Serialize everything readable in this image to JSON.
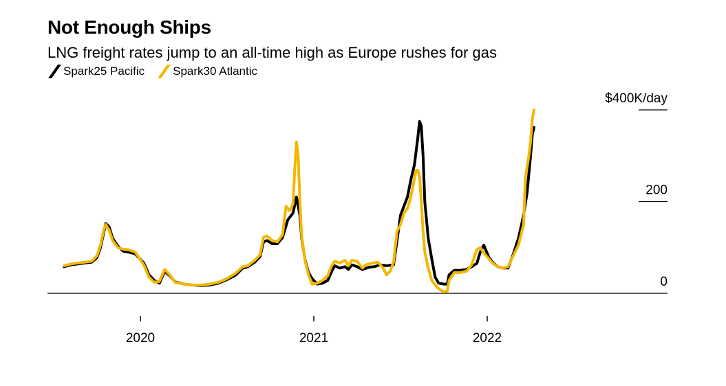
{
  "header": {
    "title": "Not Enough Ships",
    "subtitle": "LNG freight rates jump to an all-time high as Europe rushes for gas"
  },
  "chart_data": {
    "type": "line",
    "title": "Not Enough Ships",
    "subtitle": "LNG freight rates jump to an all-time high as Europe rushes for gas",
    "xlabel": "",
    "ylabel": "",
    "y_unit_label": "$400K/day",
    "ylim": [
      0,
      400
    ],
    "y_ticks": [
      0,
      200,
      400
    ],
    "y_tick_labels": [
      "0",
      "200",
      "$400K/day"
    ],
    "xlim": [
      2019.55,
      2022.85
    ],
    "x_ticks": [
      2020,
      2021,
      2022
    ],
    "x_tick_labels": [
      "2020",
      "2021",
      "2022"
    ],
    "grid": false,
    "legend_position": "top-left",
    "series": [
      {
        "name": "Spark25 Pacific",
        "color": "#000000",
        "points": [
          [
            2019.56,
            58
          ],
          [
            2019.6,
            62
          ],
          [
            2019.64,
            64
          ],
          [
            2019.68,
            66
          ],
          [
            2019.72,
            68
          ],
          [
            2019.75,
            78
          ],
          [
            2019.77,
            100
          ],
          [
            2019.79,
            135
          ],
          [
            2019.8,
            152
          ],
          [
            2019.82,
            145
          ],
          [
            2019.84,
            120
          ],
          [
            2019.87,
            103
          ],
          [
            2019.9,
            92
          ],
          [
            2019.93,
            90
          ],
          [
            2019.97,
            86
          ],
          [
            2020.02,
            66
          ],
          [
            2020.05,
            40
          ],
          [
            2020.08,
            28
          ],
          [
            2020.11,
            22
          ],
          [
            2020.14,
            48
          ],
          [
            2020.17,
            38
          ],
          [
            2020.2,
            25
          ],
          [
            2020.25,
            20
          ],
          [
            2020.3,
            18
          ],
          [
            2020.35,
            17
          ],
          [
            2020.4,
            18
          ],
          [
            2020.45,
            22
          ],
          [
            2020.5,
            30
          ],
          [
            2020.55,
            40
          ],
          [
            2020.59,
            55
          ],
          [
            2020.62,
            58
          ],
          [
            2020.66,
            68
          ],
          [
            2020.69,
            80
          ],
          [
            2020.71,
            112
          ],
          [
            2020.73,
            115
          ],
          [
            2020.76,
            108
          ],
          [
            2020.79,
            108
          ],
          [
            2020.82,
            122
          ],
          [
            2020.85,
            160
          ],
          [
            2020.88,
            175
          ],
          [
            2020.9,
            210
          ],
          [
            2020.92,
            170
          ],
          [
            2020.93,
            120
          ],
          [
            2020.95,
            72
          ],
          [
            2020.97,
            45
          ],
          [
            2020.99,
            32
          ],
          [
            2021.02,
            20
          ],
          [
            2021.05,
            22
          ],
          [
            2021.08,
            28
          ],
          [
            2021.1,
            45
          ],
          [
            2021.12,
            60
          ],
          [
            2021.15,
            55
          ],
          [
            2021.18,
            58
          ],
          [
            2021.2,
            52
          ],
          [
            2021.22,
            62
          ],
          [
            2021.25,
            58
          ],
          [
            2021.28,
            52
          ],
          [
            2021.32,
            57
          ],
          [
            2021.35,
            58
          ],
          [
            2021.38,
            62
          ],
          [
            2021.42,
            60
          ],
          [
            2021.46,
            62
          ],
          [
            2021.48,
            115
          ],
          [
            2021.5,
            170
          ],
          [
            2021.52,
            190
          ],
          [
            2021.54,
            210
          ],
          [
            2021.56,
            248
          ],
          [
            2021.58,
            280
          ],
          [
            2021.6,
            340
          ],
          [
            2021.61,
            375
          ],
          [
            2021.62,
            365
          ],
          [
            2021.63,
            300
          ],
          [
            2021.64,
            200
          ],
          [
            2021.66,
            120
          ],
          [
            2021.68,
            75
          ],
          [
            2021.7,
            35
          ],
          [
            2021.72,
            22
          ],
          [
            2021.75,
            20
          ],
          [
            2021.77,
            20
          ],
          [
            2021.78,
            40
          ],
          [
            2021.81,
            50
          ],
          [
            2021.84,
            50
          ],
          [
            2021.88,
            52
          ],
          [
            2021.91,
            58
          ],
          [
            2021.94,
            65
          ],
          [
            2021.96,
            90
          ],
          [
            2021.98,
            105
          ],
          [
            2022.01,
            78
          ],
          [
            2022.03,
            68
          ],
          [
            2022.06,
            58
          ],
          [
            2022.09,
            55
          ],
          [
            2022.12,
            55
          ],
          [
            2022.15,
            85
          ],
          [
            2022.18,
            120
          ],
          [
            2022.21,
            170
          ],
          [
            2022.23,
            220
          ],
          [
            2022.25,
            300
          ],
          [
            2022.26,
            345
          ],
          [
            2022.27,
            362
          ]
        ]
      },
      {
        "name": "Spark30 Atlantic",
        "color": "#f2b800",
        "points": [
          [
            2019.56,
            60
          ],
          [
            2019.6,
            64
          ],
          [
            2019.64,
            66
          ],
          [
            2019.68,
            68
          ],
          [
            2019.72,
            70
          ],
          [
            2019.75,
            82
          ],
          [
            2019.77,
            105
          ],
          [
            2019.79,
            140
          ],
          [
            2019.8,
            150
          ],
          [
            2019.82,
            138
          ],
          [
            2019.84,
            115
          ],
          [
            2019.87,
            100
          ],
          [
            2019.9,
            96
          ],
          [
            2019.93,
            95
          ],
          [
            2019.97,
            90
          ],
          [
            2020.02,
            62
          ],
          [
            2020.05,
            35
          ],
          [
            2020.08,
            24
          ],
          [
            2020.11,
            26
          ],
          [
            2020.14,
            52
          ],
          [
            2020.17,
            40
          ],
          [
            2020.2,
            24
          ],
          [
            2020.25,
            20
          ],
          [
            2020.3,
            18
          ],
          [
            2020.35,
            18
          ],
          [
            2020.4,
            20
          ],
          [
            2020.45,
            24
          ],
          [
            2020.5,
            32
          ],
          [
            2020.55,
            44
          ],
          [
            2020.59,
            58
          ],
          [
            2020.62,
            60
          ],
          [
            2020.66,
            72
          ],
          [
            2020.69,
            84
          ],
          [
            2020.71,
            122
          ],
          [
            2020.73,
            125
          ],
          [
            2020.76,
            115
          ],
          [
            2020.79,
            112
          ],
          [
            2020.82,
            128
          ],
          [
            2020.84,
            190
          ],
          [
            2020.86,
            180
          ],
          [
            2020.88,
            195
          ],
          [
            2020.89,
            270
          ],
          [
            2020.9,
            330
          ],
          [
            2020.91,
            300
          ],
          [
            2020.92,
            200
          ],
          [
            2020.93,
            125
          ],
          [
            2020.95,
            70
          ],
          [
            2020.97,
            40
          ],
          [
            2020.99,
            20
          ],
          [
            2021.02,
            22
          ],
          [
            2021.05,
            28
          ],
          [
            2021.08,
            38
          ],
          [
            2021.1,
            58
          ],
          [
            2021.12,
            70
          ],
          [
            2021.15,
            66
          ],
          [
            2021.18,
            72
          ],
          [
            2021.2,
            60
          ],
          [
            2021.22,
            72
          ],
          [
            2021.25,
            70
          ],
          [
            2021.28,
            55
          ],
          [
            2021.3,
            62
          ],
          [
            2021.33,
            65
          ],
          [
            2021.37,
            68
          ],
          [
            2021.4,
            55
          ],
          [
            2021.42,
            40
          ],
          [
            2021.44,
            48
          ],
          [
            2021.46,
            68
          ],
          [
            2021.48,
            135
          ],
          [
            2021.5,
            150
          ],
          [
            2021.52,
            175
          ],
          [
            2021.54,
            185
          ],
          [
            2021.56,
            210
          ],
          [
            2021.58,
            250
          ],
          [
            2021.59,
            268
          ],
          [
            2021.6,
            268
          ],
          [
            2021.61,
            255
          ],
          [
            2021.62,
            200
          ],
          [
            2021.63,
            135
          ],
          [
            2021.64,
            90
          ],
          [
            2021.66,
            55
          ],
          [
            2021.68,
            28
          ],
          [
            2021.7,
            18
          ],
          [
            2021.72,
            10
          ],
          [
            2021.75,
            3
          ],
          [
            2021.77,
            5
          ],
          [
            2021.78,
            28
          ],
          [
            2021.81,
            45
          ],
          [
            2021.84,
            45
          ],
          [
            2021.88,
            48
          ],
          [
            2021.91,
            62
          ],
          [
            2021.94,
            95
          ],
          [
            2021.96,
            100
          ],
          [
            2021.98,
            88
          ],
          [
            2022.01,
            75
          ],
          [
            2022.03,
            66
          ],
          [
            2022.06,
            58
          ],
          [
            2022.09,
            55
          ],
          [
            2022.12,
            58
          ],
          [
            2022.15,
            82
          ],
          [
            2022.18,
            105
          ],
          [
            2022.21,
            150
          ],
          [
            2022.22,
            250
          ],
          [
            2022.24,
            300
          ],
          [
            2022.25,
            330
          ],
          [
            2022.26,
            380
          ],
          [
            2022.27,
            400
          ]
        ]
      }
    ]
  },
  "legend": {
    "items": [
      {
        "label": "Spark25 Pacific",
        "color": "#000000"
      },
      {
        "label": "Spark30 Atlantic",
        "color": "#f2b800"
      }
    ]
  }
}
